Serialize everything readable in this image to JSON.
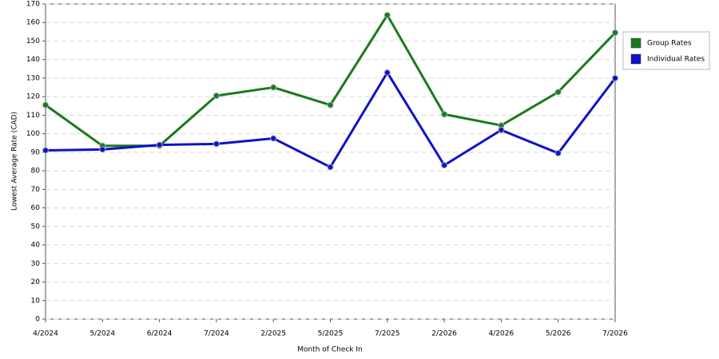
{
  "chart_data": {
    "type": "line",
    "x_label": "Month of Check In",
    "y_label": "Lowest Average Rate (CAD)",
    "categories": [
      "4/2024",
      "5/2024",
      "6/2024",
      "7/2024",
      "2/2025",
      "5/2025",
      "7/2025",
      "2/2026",
      "4/2026",
      "5/2026",
      "7/2026"
    ],
    "series": [
      {
        "name": "Group Rates",
        "color": "#1a7a1a",
        "values": [
          115.5,
          93.5,
          93.5,
          120.5,
          125,
          115.5,
          164,
          110.5,
          104.5,
          122.5,
          154.5
        ]
      },
      {
        "name": "Individual Rates",
        "color": "#1010c8",
        "values": [
          91,
          91.5,
          94,
          94.5,
          97.5,
          82,
          133,
          83,
          102,
          89.5,
          130
        ]
      }
    ],
    "ylim": [
      0,
      170
    ],
    "yticks": [
      0,
      10,
      20,
      30,
      40,
      50,
      60,
      70,
      80,
      90,
      100,
      110,
      120,
      130,
      140,
      150,
      160,
      170
    ],
    "grid": true,
    "legend": "right"
  }
}
